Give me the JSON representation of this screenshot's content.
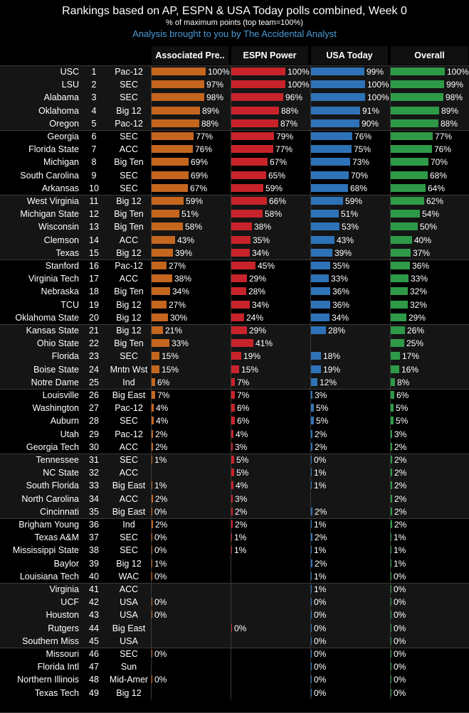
{
  "header": {
    "title": "Rankings based on AP, ESPN & USA Today polls combined, Week 0",
    "subtitle": "% of maximum points (top team=100%)",
    "credit_prefix": "Analysis brought to you by ",
    "credit_name": "The Accidental Analyst"
  },
  "chart_data": {
    "type": "bar",
    "title": "Rankings based on AP, ESPN & USA Today polls combined, Week 0",
    "subtitle": "% of maximum points (top team=100%)",
    "value_unit": "%",
    "ylim": [
      0,
      100
    ],
    "columns": [
      "Associated Pre..",
      "ESPN Power",
      "USA Today",
      "Overall"
    ],
    "colors": [
      "#c5661f",
      "#c8232b",
      "#2e73b8",
      "#2e9a48"
    ],
    "group_size": 5,
    "rows": [
      {
        "team": "USC",
        "rank": 1,
        "conf": "Pac-12",
        "values": [
          100,
          100,
          99,
          100
        ]
      },
      {
        "team": "LSU",
        "rank": 2,
        "conf": "SEC",
        "values": [
          97,
          100,
          100,
          99
        ]
      },
      {
        "team": "Alabama",
        "rank": 3,
        "conf": "SEC",
        "values": [
          98,
          96,
          100,
          98
        ]
      },
      {
        "team": "Oklahoma",
        "rank": 4,
        "conf": "Big 12",
        "values": [
          89,
          88,
          91,
          89
        ]
      },
      {
        "team": "Oregon",
        "rank": 5,
        "conf": "Pac-12",
        "values": [
          88,
          87,
          90,
          88
        ]
      },
      {
        "team": "Georgia",
        "rank": 6,
        "conf": "SEC",
        "values": [
          77,
          79,
          76,
          77
        ]
      },
      {
        "team": "Florida State",
        "rank": 7,
        "conf": "ACC",
        "values": [
          76,
          77,
          75,
          76
        ]
      },
      {
        "team": "Michigan",
        "rank": 8,
        "conf": "Big Ten",
        "values": [
          69,
          67,
          73,
          70
        ]
      },
      {
        "team": "South Carolina",
        "rank": 9,
        "conf": "SEC",
        "values": [
          69,
          65,
          70,
          68
        ]
      },
      {
        "team": "Arkansas",
        "rank": 10,
        "conf": "SEC",
        "values": [
          67,
          59,
          68,
          64
        ]
      },
      {
        "team": "West Virginia",
        "rank": 11,
        "conf": "Big 12",
        "values": [
          59,
          66,
          59,
          62
        ]
      },
      {
        "team": "Michigan State",
        "rank": 12,
        "conf": "Big Ten",
        "values": [
          51,
          58,
          51,
          54
        ]
      },
      {
        "team": "Wisconsin",
        "rank": 13,
        "conf": "Big Ten",
        "values": [
          58,
          38,
          53,
          50
        ]
      },
      {
        "team": "Clemson",
        "rank": 14,
        "conf": "ACC",
        "values": [
          43,
          35,
          43,
          40
        ]
      },
      {
        "team": "Texas",
        "rank": 15,
        "conf": "Big 12",
        "values": [
          39,
          34,
          39,
          37
        ]
      },
      {
        "team": "Stanford",
        "rank": 16,
        "conf": "Pac-12",
        "values": [
          27,
          45,
          35,
          36
        ]
      },
      {
        "team": "Virginia Tech",
        "rank": 17,
        "conf": "ACC",
        "values": [
          38,
          29,
          33,
          33
        ]
      },
      {
        "team": "Nebraska",
        "rank": 18,
        "conf": "Big Ten",
        "values": [
          34,
          28,
          36,
          32
        ]
      },
      {
        "team": "TCU",
        "rank": 19,
        "conf": "Big 12",
        "values": [
          27,
          34,
          36,
          32
        ]
      },
      {
        "team": "Oklahoma State",
        "rank": 20,
        "conf": "Big 12",
        "values": [
          30,
          24,
          34,
          29
        ]
      },
      {
        "team": "Kansas State",
        "rank": 21,
        "conf": "Big 12",
        "values": [
          21,
          29,
          28,
          26
        ]
      },
      {
        "team": "Ohio State",
        "rank": 22,
        "conf": "Big Ten",
        "values": [
          33,
          41,
          null,
          25
        ]
      },
      {
        "team": "Florida",
        "rank": 23,
        "conf": "SEC",
        "values": [
          15,
          19,
          18,
          17
        ]
      },
      {
        "team": "Boise State",
        "rank": 24,
        "conf": "Mntn Wst",
        "values": [
          15,
          15,
          19,
          16
        ]
      },
      {
        "team": "Notre Dame",
        "rank": 25,
        "conf": "Ind",
        "values": [
          6,
          7,
          12,
          8
        ]
      },
      {
        "team": "Louisville",
        "rank": 26,
        "conf": "Big East",
        "values": [
          7,
          7,
          3,
          6
        ]
      },
      {
        "team": "Washington",
        "rank": 27,
        "conf": "Pac-12",
        "values": [
          4,
          6,
          5,
          5
        ]
      },
      {
        "team": "Auburn",
        "rank": 28,
        "conf": "SEC",
        "values": [
          4,
          6,
          5,
          5
        ]
      },
      {
        "team": "Utah",
        "rank": 29,
        "conf": "Pac-12",
        "values": [
          2,
          4,
          2,
          3
        ]
      },
      {
        "team": "Georgia Tech",
        "rank": 30,
        "conf": "ACC",
        "values": [
          2,
          3,
          2,
          2
        ]
      },
      {
        "team": "Tennessee",
        "rank": 31,
        "conf": "SEC",
        "values": [
          1,
          5,
          0,
          2
        ]
      },
      {
        "team": "NC State",
        "rank": 32,
        "conf": "ACC",
        "values": [
          null,
          5,
          1,
          2
        ]
      },
      {
        "team": "South Florida",
        "rank": 33,
        "conf": "Big East",
        "values": [
          1,
          4,
          1,
          2
        ]
      },
      {
        "team": "North Carolina",
        "rank": 34,
        "conf": "ACC",
        "values": [
          2,
          3,
          null,
          2
        ]
      },
      {
        "team": "Cincinnati",
        "rank": 35,
        "conf": "Big East",
        "values": [
          0,
          2,
          2,
          2
        ]
      },
      {
        "team": "Brigham Young",
        "rank": 36,
        "conf": "Ind",
        "values": [
          2,
          2,
          1,
          2
        ]
      },
      {
        "team": "Texas A&M",
        "rank": 37,
        "conf": "SEC",
        "values": [
          0,
          1,
          2,
          1
        ]
      },
      {
        "team": "Mississippi State",
        "rank": 38,
        "conf": "SEC",
        "values": [
          0,
          1,
          1,
          1
        ]
      },
      {
        "team": "Baylor",
        "rank": 39,
        "conf": "Big 12",
        "values": [
          1,
          null,
          2,
          1
        ]
      },
      {
        "team": "Louisiana Tech",
        "rank": 40,
        "conf": "WAC",
        "values": [
          0,
          null,
          1,
          0
        ]
      },
      {
        "team": "Virginia",
        "rank": 41,
        "conf": "ACC",
        "values": [
          null,
          null,
          1,
          0
        ]
      },
      {
        "team": "UCF",
        "rank": 42,
        "conf": "USA",
        "values": [
          0,
          null,
          0,
          0
        ]
      },
      {
        "team": "Houston",
        "rank": 43,
        "conf": "USA",
        "values": [
          0,
          null,
          0,
          0
        ]
      },
      {
        "team": "Rutgers",
        "rank": 44,
        "conf": "Big East",
        "values": [
          null,
          0,
          0,
          0
        ]
      },
      {
        "team": "Southern Miss",
        "rank": 45,
        "conf": "USA",
        "values": [
          null,
          null,
          0,
          0
        ]
      },
      {
        "team": "Missouri",
        "rank": 46,
        "conf": "SEC",
        "values": [
          0,
          null,
          0,
          0
        ]
      },
      {
        "team": "Florida Intl",
        "rank": 47,
        "conf": "Sun",
        "values": [
          null,
          null,
          0,
          0
        ]
      },
      {
        "team": "Northern Illinois",
        "rank": 48,
        "conf": "Mid-Amer",
        "values": [
          0,
          null,
          0,
          0
        ]
      },
      {
        "team": "Texas Tech",
        "rank": 49,
        "conf": "Big 12",
        "values": [
          null,
          null,
          0,
          0
        ]
      }
    ]
  }
}
